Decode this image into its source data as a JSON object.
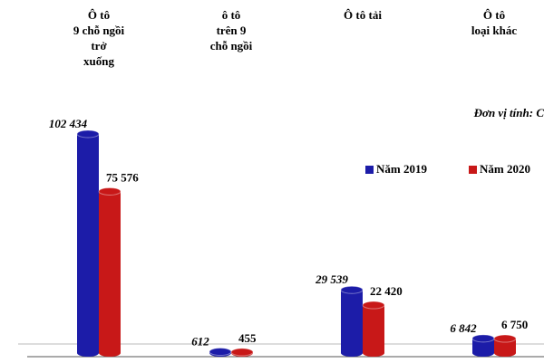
{
  "chart_data": {
    "type": "bar",
    "categories": [
      "Ô tô\n9 chỗ ngồi\ntrở\nxuống",
      "ô tô\ntrên 9\nchỗ ngồi",
      "Ô tô tải",
      "Ô tô\nloại khác"
    ],
    "unit_label": "Đơn vị tính: C",
    "series": [
      {
        "name": "Năm 2019",
        "color": "#1c1ca8",
        "values": [
          102434,
          612,
          29539,
          6842
        ],
        "value_labels": [
          "102 434",
          "612",
          "29 539",
          "6 842"
        ]
      },
      {
        "name": "Năm 2020",
        "color": "#c81818",
        "values": [
          75576,
          455,
          22420,
          6750
        ],
        "value_labels": [
          "75 576",
          "455",
          "22 420",
          "6 750"
        ]
      }
    ]
  }
}
